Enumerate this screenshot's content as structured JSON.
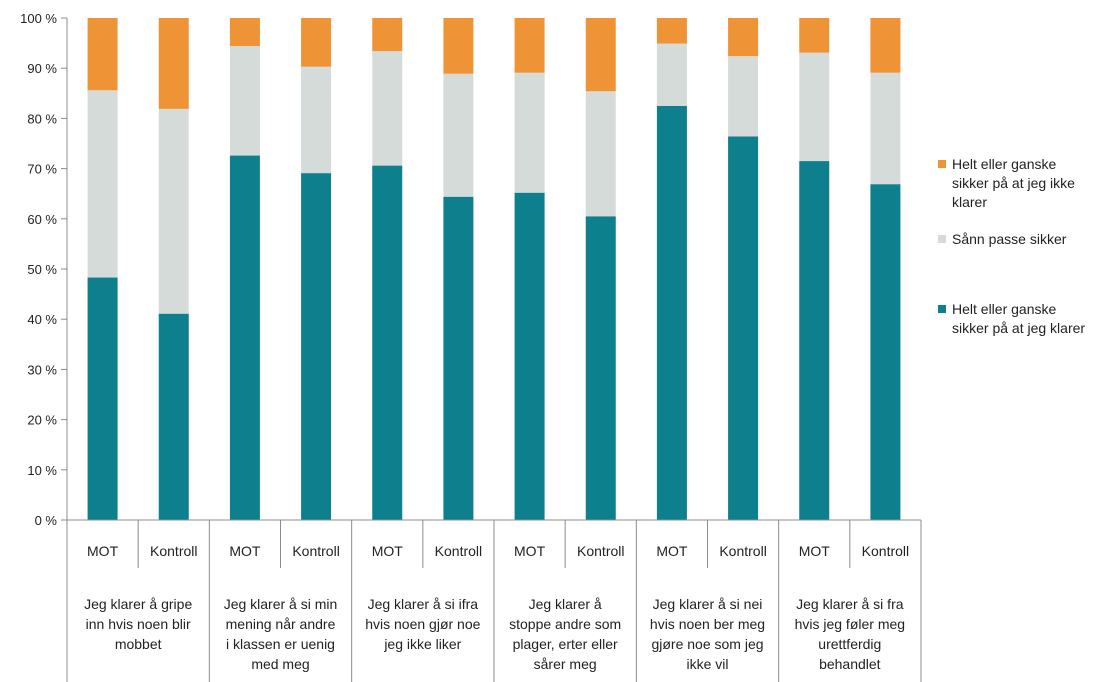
{
  "chart_data": {
    "type": "bar",
    "stacked": true,
    "percent_stacked": true,
    "groups": [
      "Jeg klarer å gripe inn hvis noen blir mobbet",
      "Jeg klarer å si min mening når andre i klassen er uenig med meg",
      "Jeg klarer å si ifra hvis noen gjør noe jeg ikke liker",
      "Jeg klarer å stoppe andre som plager, erter eller sårer meg",
      "Jeg klarer å si nei hvis noen ber meg gjøre noe som jeg ikke vil",
      "Jeg klarer å si fra hvis jeg føler meg urettferdig behandlet"
    ],
    "group_label_lines": [
      [
        "Jeg klarer å gripe",
        "inn hvis noen blir",
        "mobbet"
      ],
      [
        "Jeg klarer å si min",
        "mening når andre",
        "i klassen er uenig",
        "med meg"
      ],
      [
        "Jeg klarer å si ifra",
        "hvis noen gjør noe",
        "jeg ikke liker"
      ],
      [
        "Jeg klarer å",
        "stoppe andre som",
        "plager, erter eller",
        "sårer meg"
      ],
      [
        "Jeg klarer å si nei",
        "hvis noen ber meg",
        "gjøre noe som jeg",
        "ikke vil"
      ],
      [
        "Jeg klarer å si fra",
        "hvis jeg føler meg",
        "urettferdig",
        "behandlet"
      ]
    ],
    "subcategories": [
      "MOT",
      "Kontroll"
    ],
    "categories": [
      "MOT",
      "Kontroll",
      "MOT",
      "Kontroll",
      "MOT",
      "Kontroll",
      "MOT",
      "Kontroll",
      "MOT",
      "Kontroll",
      "MOT",
      "Kontroll"
    ],
    "series": [
      {
        "name": "Helt eller ganske sikker på at jeg klarer",
        "color": "#0e7f8c",
        "values": [
          48.3,
          41.1,
          72.6,
          69.1,
          70.6,
          64.4,
          65.2,
          60.5,
          82.5,
          76.4,
          71.5,
          66.9
        ]
      },
      {
        "name": "Sånn passe sikker",
        "color": "#d5dbd9",
        "values": [
          37.3,
          40.8,
          21.8,
          21.2,
          22.8,
          24.5,
          23.9,
          24.9,
          12.4,
          16.0,
          21.6,
          22.2
        ]
      },
      {
        "name": "Helt eller ganske sikker på at jeg ikke klarer",
        "color": "#ef9436",
        "values": [
          14.4,
          18.1,
          5.6,
          9.7,
          6.6,
          11.1,
          10.9,
          14.6,
          5.1,
          7.6,
          6.9,
          10.9
        ]
      }
    ],
    "ylim": [
      0,
      100
    ],
    "yticks": [
      0,
      10,
      20,
      30,
      40,
      50,
      60,
      70,
      80,
      90,
      100
    ],
    "ytick_labels": [
      "0 %",
      "10 %",
      "20 %",
      "30 %",
      "40 %",
      "50 %",
      "60 %",
      "70 %",
      "80 %",
      "90 %",
      "100 %"
    ],
    "legend": {
      "position": "right",
      "entries": [
        {
          "label": "Helt eller ganske sikker på at jeg ikke klarer",
          "lines": [
            "Helt eller ganske",
            "sikker på at jeg ikke",
            "klarer"
          ],
          "color": "#ef9436"
        },
        {
          "label": "Sånn passe sikker",
          "lines": [
            "Sånn passe sikker"
          ],
          "color": "#d5dbd9"
        },
        {
          "label": "Helt eller ganske sikker på at jeg klarer",
          "lines": [
            "Helt eller ganske",
            "sikker på at jeg klarer"
          ],
          "color": "#0e7f8c"
        }
      ]
    },
    "grid": false
  }
}
